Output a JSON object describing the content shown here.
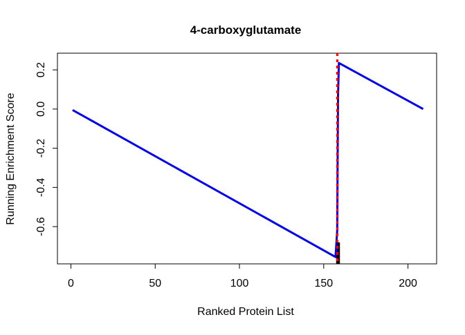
{
  "chart_data": {
    "type": "line",
    "title": "4-carboxyglutamate",
    "xlabel": "Ranked Protein List",
    "ylabel": "Running Enrichment Score",
    "xlim": [
      -8,
      217
    ],
    "ylim": [
      -0.79,
      0.285
    ],
    "x_ticks": [
      0,
      50,
      100,
      150,
      200
    ],
    "x_tick_labels": [
      "0",
      "50",
      "100",
      "150",
      "200"
    ],
    "y_ticks": [
      -0.6,
      -0.4,
      -0.2,
      0.0,
      0.2
    ],
    "y_tick_labels": [
      "-0.6",
      "-0.4",
      "-0.2",
      "0.0",
      "0.2"
    ],
    "grid": false,
    "series": [
      {
        "color": "#0000ee",
        "x": [
          1,
          157,
          158,
          158.5,
          159,
          209
        ],
        "y": [
          -0.005,
          -0.755,
          -0.62,
          0.07,
          0.235,
          0.0
        ]
      }
    ],
    "max_deviation_x": 158,
    "max_deviation_color": "#ff0000",
    "hits": [
      158,
      159
    ],
    "hit_color": "#000000"
  }
}
